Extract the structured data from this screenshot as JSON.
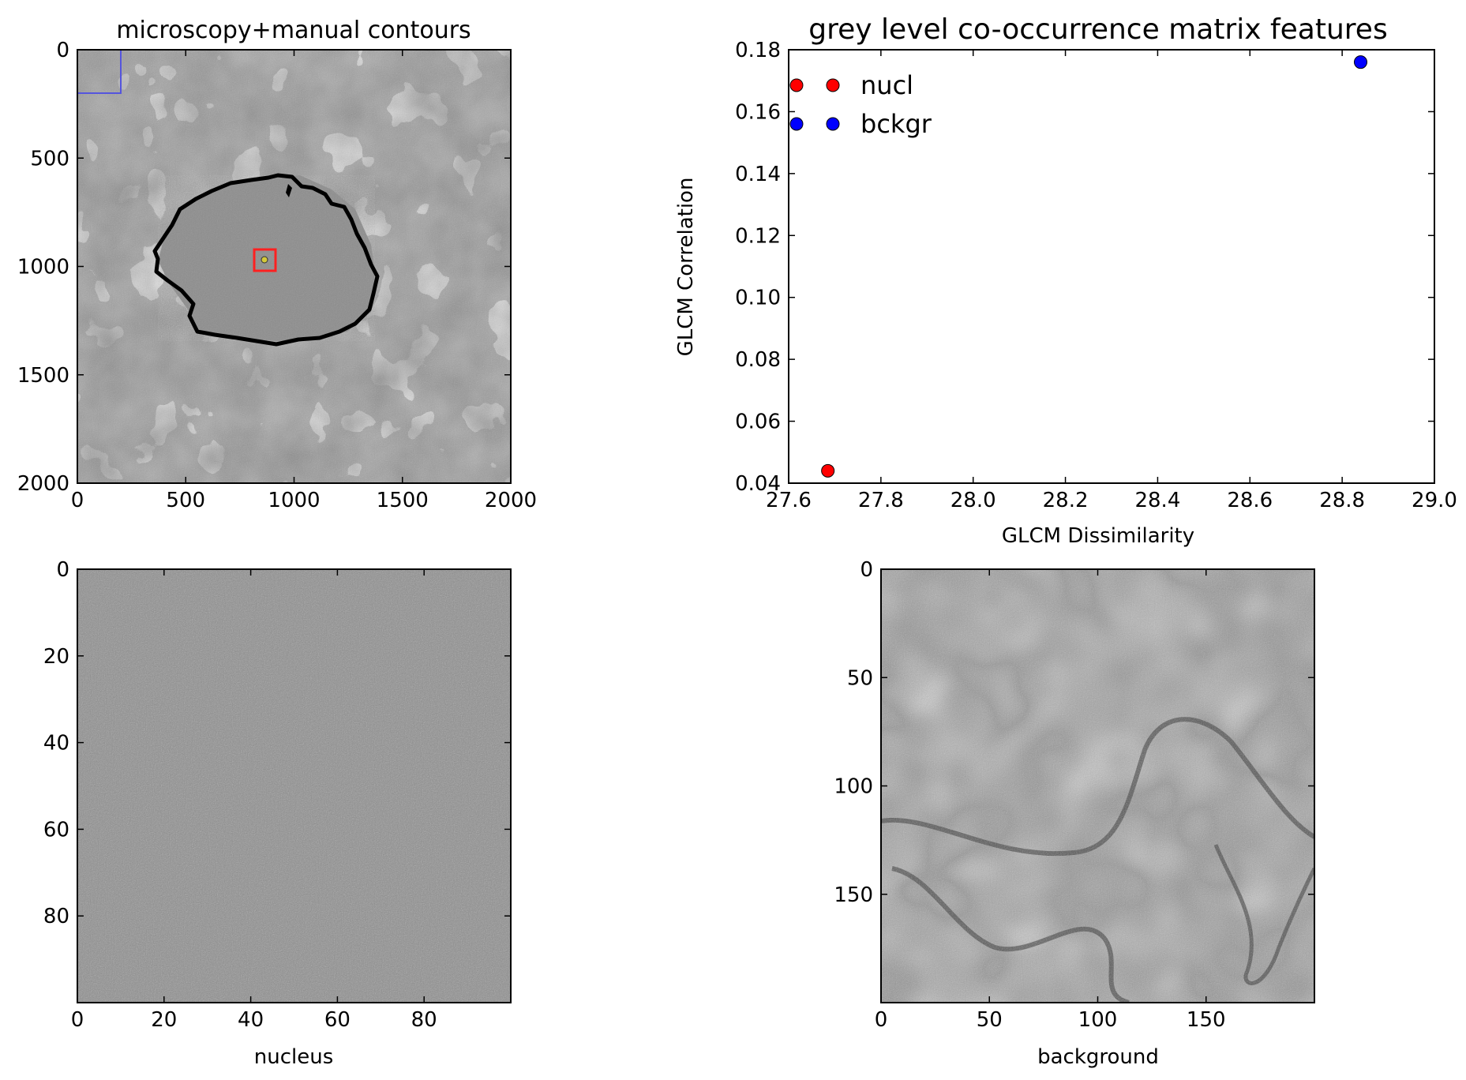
{
  "figure": {
    "top_left": {
      "title": "microscopy+manual contours",
      "x_ticks": [
        "0",
        "500",
        "1000",
        "1500",
        "2000"
      ],
      "y_ticks": [
        "0",
        "500",
        "1000",
        "1500",
        "2000"
      ],
      "xlim": [
        0,
        2000
      ],
      "ylim": [
        2000,
        0
      ]
    },
    "bottom_left": {
      "xlabel": "nucleus",
      "x_ticks": [
        "0",
        "20",
        "40",
        "60",
        "80"
      ],
      "y_ticks": [
        "0",
        "20",
        "40",
        "60",
        "80"
      ],
      "xlim": [
        0,
        100
      ],
      "ylim": [
        100,
        0
      ]
    },
    "bottom_right": {
      "xlabel": "background",
      "x_ticks": [
        "0",
        "50",
        "100",
        "150"
      ],
      "y_ticks": [
        "0",
        "50",
        "100",
        "150"
      ],
      "xlim": [
        0,
        200
      ],
      "ylim": [
        200,
        0
      ]
    }
  },
  "colors": {
    "nucl": "#ff0000",
    "bckgr": "#0000ff",
    "contour": "#000000",
    "nucleus_box": "#ff2020",
    "background_box": "#5555dd"
  },
  "chart_data": {
    "type": "scatter",
    "title": "grey level co-occurrence matrix features",
    "xlabel": "GLCM Dissimilarity",
    "ylabel": "GLCM Correlation",
    "xlim": [
      27.6,
      29.0
    ],
    "ylim": [
      0.04,
      0.18
    ],
    "x_ticks": [
      "27.6",
      "27.8",
      "28.0",
      "28.2",
      "28.4",
      "28.6",
      "28.8",
      "29.0"
    ],
    "y_ticks": [
      "0.04",
      "0.06",
      "0.08",
      "0.10",
      "0.12",
      "0.14",
      "0.16",
      "0.18"
    ],
    "grid": false,
    "legend_position": "top-left",
    "series": [
      {
        "name": "nucl",
        "color": "#ff0000",
        "x": [
          27.685
        ],
        "y": [
          0.044
        ]
      },
      {
        "name": "bckgr",
        "color": "#0000ff",
        "x": [
          28.84
        ],
        "y": [
          0.176
        ]
      }
    ]
  }
}
